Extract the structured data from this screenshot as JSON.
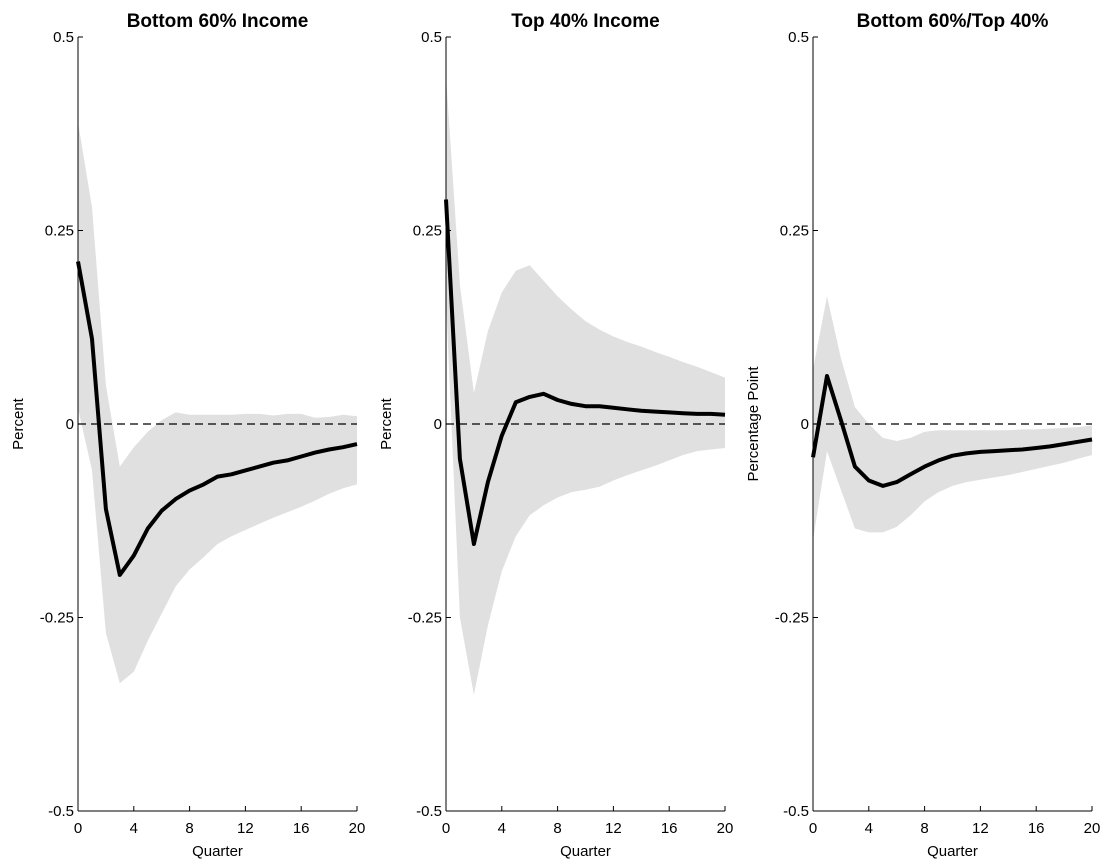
{
  "colors": {
    "line": "#000000",
    "band": "#e0e0e0",
    "zero_line": "#000000",
    "background": "#ffffff"
  },
  "chart_data": [
    {
      "type": "line",
      "title": "Bottom 60% Income",
      "xlabel": "Quarter",
      "ylabel": "Percent",
      "xlim": [
        0,
        20
      ],
      "ylim": [
        -0.5,
        0.5
      ],
      "xticks": [
        0,
        4,
        8,
        12,
        16,
        20
      ],
      "yticks": [
        -0.5,
        -0.25,
        0,
        0.25,
        0.5
      ],
      "ytick_labels": [
        "-0.5",
        "-0.25",
        "0",
        "0.25",
        "0.5"
      ],
      "zero_line": "dashed",
      "x": [
        0,
        1,
        2,
        3,
        4,
        5,
        6,
        7,
        8,
        9,
        10,
        11,
        12,
        13,
        14,
        15,
        16,
        17,
        18,
        19,
        20
      ],
      "series": [
        {
          "values": [
            0.21,
            0.11,
            -0.11,
            -0.195,
            -0.17,
            -0.135,
            -0.112,
            -0.097,
            -0.086,
            -0.078,
            -0.068,
            -0.065,
            -0.06,
            -0.055,
            -0.05,
            -0.047,
            -0.042,
            -0.037,
            -0.033,
            -0.03,
            -0.026
          ]
        }
      ],
      "band": {
        "upper": [
          0.39,
          0.28,
          0.05,
          -0.055,
          -0.03,
          -0.01,
          0.005,
          0.015,
          0.012,
          0.012,
          0.012,
          0.012,
          0.013,
          0.013,
          0.011,
          0.013,
          0.013,
          0.008,
          0.009,
          0.012,
          0.01
        ],
        "lower": [
          0.02,
          -0.06,
          -0.27,
          -0.335,
          -0.32,
          -0.28,
          -0.245,
          -0.21,
          -0.188,
          -0.172,
          -0.155,
          -0.145,
          -0.137,
          -0.129,
          -0.121,
          -0.114,
          -0.107,
          -0.099,
          -0.09,
          -0.083,
          -0.078
        ]
      }
    },
    {
      "type": "line",
      "title": "Top 40% Income",
      "xlabel": "Quarter",
      "ylabel": "Percent",
      "xlim": [
        0,
        20
      ],
      "ylim": [
        -0.5,
        0.5
      ],
      "xticks": [
        0,
        4,
        8,
        12,
        16,
        20
      ],
      "yticks": [
        -0.5,
        -0.25,
        0,
        0.25,
        0.5
      ],
      "ytick_labels": [
        "-0.5",
        "-0.25",
        "0",
        "0.25",
        "0.5"
      ],
      "zero_line": "dashed",
      "x": [
        0,
        1,
        2,
        3,
        4,
        5,
        6,
        7,
        8,
        9,
        10,
        11,
        12,
        13,
        14,
        15,
        16,
        17,
        18,
        19,
        20
      ],
      "series": [
        {
          "values": [
            0.29,
            -0.045,
            -0.155,
            -0.075,
            -0.015,
            0.028,
            0.035,
            0.039,
            0.031,
            0.026,
            0.023,
            0.023,
            0.021,
            0.019,
            0.017,
            0.016,
            0.015,
            0.014,
            0.013,
            0.013,
            0.012
          ]
        }
      ],
      "band": {
        "upper": [
          0.45,
          0.18,
          0.04,
          0.12,
          0.17,
          0.198,
          0.205,
          0.185,
          0.165,
          0.148,
          0.133,
          0.122,
          0.113,
          0.106,
          0.1,
          0.093,
          0.087,
          0.08,
          0.074,
          0.067,
          0.06
        ],
        "lower": [
          0.16,
          -0.25,
          -0.35,
          -0.26,
          -0.19,
          -0.145,
          -0.118,
          -0.105,
          -0.095,
          -0.088,
          -0.085,
          -0.081,
          -0.073,
          -0.066,
          -0.06,
          -0.054,
          -0.047,
          -0.04,
          -0.035,
          -0.033,
          -0.031
        ]
      }
    },
    {
      "type": "line",
      "title": "Bottom 60%/Top 40%",
      "xlabel": "Quarter",
      "ylabel": "Percentage Point",
      "xlim": [
        0,
        20
      ],
      "ylim": [
        -0.5,
        0.5
      ],
      "xticks": [
        0,
        4,
        8,
        12,
        16,
        20
      ],
      "yticks": [
        -0.5,
        -0.25,
        0,
        0.25,
        0.5
      ],
      "ytick_labels": [
        "-0.5",
        "-0.25",
        "0",
        "0.25",
        "0.5"
      ],
      "zero_line": "dashed",
      "x": [
        0,
        1,
        2,
        3,
        4,
        5,
        6,
        7,
        8,
        9,
        10,
        11,
        12,
        13,
        14,
        15,
        16,
        17,
        18,
        19,
        20
      ],
      "series": [
        {
          "values": [
            -0.043,
            0.062,
            0.005,
            -0.055,
            -0.073,
            -0.08,
            -0.075,
            -0.065,
            -0.055,
            -0.047,
            -0.041,
            -0.038,
            -0.036,
            -0.035,
            -0.034,
            -0.033,
            -0.031,
            -0.029,
            -0.026,
            -0.023,
            -0.02
          ]
        }
      ],
      "band": {
        "upper": [
          0.07,
          0.165,
          0.085,
          0.022,
          0.0,
          -0.018,
          -0.022,
          -0.018,
          -0.01,
          -0.008,
          -0.008,
          -0.008,
          -0.008,
          -0.008,
          -0.008,
          -0.007,
          -0.007,
          -0.006,
          -0.005,
          -0.004,
          -0.002
        ],
        "lower": [
          -0.15,
          -0.035,
          -0.085,
          -0.135,
          -0.14,
          -0.14,
          -0.133,
          -0.118,
          -0.1,
          -0.088,
          -0.08,
          -0.075,
          -0.072,
          -0.069,
          -0.066,
          -0.062,
          -0.058,
          -0.054,
          -0.05,
          -0.045,
          -0.04
        ]
      }
    }
  ]
}
